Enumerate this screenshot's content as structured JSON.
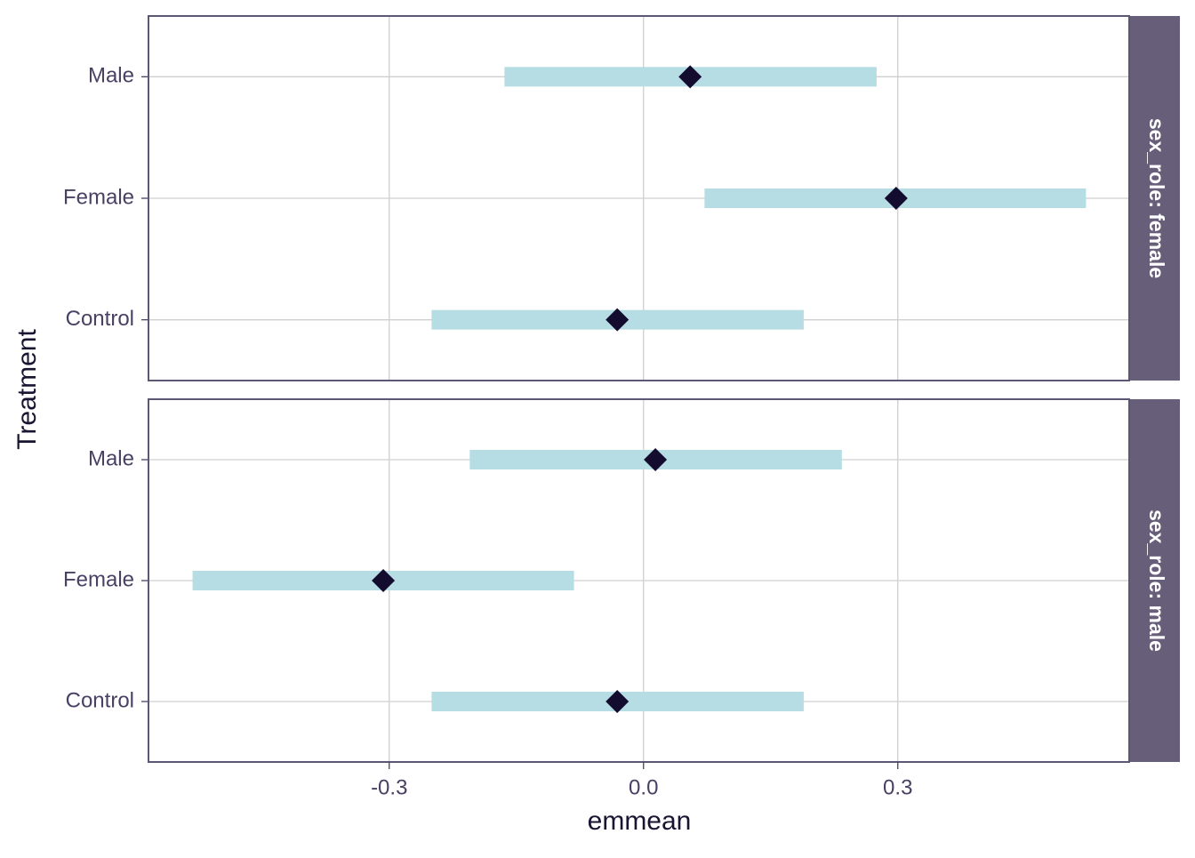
{
  "chart_data": {
    "type": "interval",
    "x_label": "emmean",
    "y_label": "Treatment",
    "xlim": [
      -0.584,
      0.573
    ],
    "xticks": [
      -0.3,
      {
        "value": 0,
        "label": "0.0"
      },
      0.3
    ],
    "grid": true,
    "interval_color": "#b5dde3",
    "point_color": "#140c2e",
    "strip_color": "#675f7a",
    "facets": [
      {
        "label": "sex_role: female",
        "categories": [
          "Male",
          "Female",
          "Control"
        ],
        "values": [
          0.055,
          0.298,
          -0.031
        ],
        "lower": [
          -0.164,
          0.072,
          -0.25
        ],
        "upper": [
          0.275,
          0.522,
          0.189
        ]
      },
      {
        "label": "sex_role: male",
        "categories": [
          "Male",
          "Female",
          "Control"
        ],
        "values": [
          0.014,
          -0.307,
          -0.031
        ],
        "lower": [
          -0.205,
          -0.532,
          -0.25
        ],
        "upper": [
          0.234,
          -0.082,
          0.189
        ]
      }
    ]
  }
}
